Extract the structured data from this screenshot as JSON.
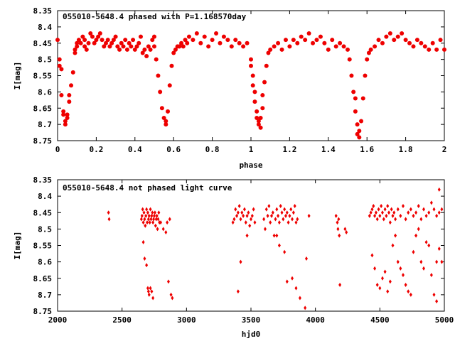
{
  "chart_data": [
    {
      "type": "scatter",
      "title": "055010-5648.4 phased with P=1.168570day",
      "xlabel": "phase",
      "ylabel": "I[mag]",
      "xlim": [
        0,
        2
      ],
      "ylim": [
        8.75,
        8.35
      ],
      "y_inverted": true,
      "x_ticks": [
        "0",
        "0.2",
        "0.4",
        "0.6",
        "0.8",
        "1",
        "1.2",
        "1.4",
        "1.6",
        "1.8",
        "2"
      ],
      "y_ticks": [
        "8.35",
        "8.4",
        "8.45",
        "8.5",
        "8.55",
        "8.6",
        "8.65",
        "8.7",
        "8.75"
      ],
      "marker": "filled-circle",
      "color": "#ee0000",
      "grid": false,
      "series": [
        {
          "x": [
            0.0,
            0.01,
            0.01,
            0.02,
            0.02,
            0.03,
            0.03,
            0.04,
            0.04,
            0.05,
            0.05,
            0.06,
            0.06,
            0.07,
            0.08,
            0.09,
            0.09,
            0.1,
            0.1,
            0.11,
            0.12,
            0.13,
            0.14,
            0.14,
            0.15,
            0.16,
            0.17,
            0.18,
            0.19,
            0.2,
            0.21,
            0.22,
            0.23,
            0.24,
            0.25,
            0.26,
            0.27,
            0.28,
            0.29,
            0.3,
            0.31,
            0.32,
            0.33,
            0.34,
            0.35,
            0.36,
            0.37,
            0.38,
            0.39,
            0.4,
            0.41,
            0.42,
            0.43,
            0.44,
            0.45,
            0.46,
            0.47,
            0.48,
            0.49,
            0.5,
            0.5,
            0.51,
            0.52,
            0.53,
            0.54,
            0.55,
            0.56,
            0.56,
            0.57,
            0.58,
            0.59,
            0.6,
            0.61,
            0.62,
            0.63,
            0.64,
            0.65,
            0.66,
            0.67,
            0.68,
            0.7,
            0.72,
            0.74,
            0.76,
            0.78,
            0.8,
            0.82,
            0.84,
            0.86,
            0.88,
            0.9,
            0.92,
            0.94,
            0.96,
            0.98,
            1.0,
            1.0,
            1.01,
            1.01,
            1.02,
            1.02,
            1.03,
            1.03,
            1.04,
            1.04,
            1.05,
            1.05,
            1.06,
            1.06,
            1.07,
            1.08,
            1.09,
            1.1,
            1.12,
            1.14,
            1.16,
            1.18,
            1.2,
            1.22,
            1.24,
            1.26,
            1.28,
            1.3,
            1.32,
            1.34,
            1.36,
            1.38,
            1.4,
            1.42,
            1.44,
            1.46,
            1.48,
            1.5,
            1.51,
            1.52,
            1.53,
            1.54,
            1.54,
            1.55,
            1.55,
            1.56,
            1.56,
            1.57,
            1.58,
            1.59,
            1.6,
            1.61,
            1.62,
            1.64,
            1.66,
            1.68,
            1.7,
            1.72,
            1.74,
            1.76,
            1.78,
            1.8,
            1.82,
            1.84,
            1.86,
            1.88,
            1.9,
            1.92,
            1.94,
            1.96,
            1.98,
            2.0
          ],
          "y": [
            8.44,
            8.5,
            8.52,
            8.53,
            8.61,
            8.66,
            8.67,
            8.69,
            8.7,
            8.68,
            8.67,
            8.63,
            8.61,
            8.58,
            8.54,
            8.48,
            8.47,
            8.45,
            8.46,
            8.44,
            8.45,
            8.43,
            8.44,
            8.46,
            8.47,
            8.45,
            8.42,
            8.43,
            8.45,
            8.44,
            8.43,
            8.42,
            8.44,
            8.46,
            8.45,
            8.44,
            8.46,
            8.45,
            8.44,
            8.43,
            8.46,
            8.47,
            8.45,
            8.46,
            8.44,
            8.47,
            8.45,
            8.46,
            8.44,
            8.47,
            8.46,
            8.45,
            8.43,
            8.48,
            8.47,
            8.49,
            8.46,
            8.47,
            8.44,
            8.43,
            8.46,
            8.5,
            8.55,
            8.6,
            8.65,
            8.68,
            8.7,
            8.69,
            8.66,
            8.58,
            8.52,
            8.48,
            8.47,
            8.46,
            8.46,
            8.45,
            8.46,
            8.44,
            8.45,
            8.43,
            8.44,
            8.42,
            8.45,
            8.43,
            8.46,
            8.44,
            8.42,
            8.45,
            8.43,
            8.44,
            8.46,
            8.44,
            8.45,
            8.46,
            8.45,
            8.5,
            8.52,
            8.55,
            8.58,
            8.6,
            8.63,
            8.66,
            8.68,
            8.69,
            8.7,
            8.71,
            8.68,
            8.65,
            8.61,
            8.57,
            8.52,
            8.48,
            8.47,
            8.46,
            8.45,
            8.47,
            8.44,
            8.46,
            8.44,
            8.45,
            8.43,
            8.44,
            8.42,
            8.45,
            8.44,
            8.43,
            8.45,
            8.47,
            8.44,
            8.46,
            8.45,
            8.46,
            8.47,
            8.5,
            8.55,
            8.6,
            8.62,
            8.66,
            8.7,
            8.73,
            8.74,
            8.72,
            8.69,
            8.62,
            8.55,
            8.5,
            8.48,
            8.47,
            8.46,
            8.44,
            8.45,
            8.43,
            8.42,
            8.44,
            8.43,
            8.42,
            8.44,
            8.45,
            8.46,
            8.44,
            8.45,
            8.46,
            8.47,
            8.45,
            8.47,
            8.44,
            8.47
          ]
        }
      ]
    },
    {
      "type": "scatter",
      "title": "055010-5648.4 not phased light curve",
      "xlabel": "hjd0",
      "ylabel": "I[mag]",
      "xlim": [
        2000,
        5000
      ],
      "ylim": [
        8.75,
        8.35
      ],
      "y_inverted": true,
      "x_ticks": [
        "2000",
        "2500",
        "3000",
        "3500",
        "4000",
        "4500",
        "5000"
      ],
      "y_ticks": [
        "8.35",
        "8.4",
        "8.45",
        "8.5",
        "8.55",
        "8.6",
        "8.65",
        "8.7",
        "8.75"
      ],
      "marker": "diamond",
      "color": "#ee0000",
      "grid": false,
      "series": [
        {
          "x": [
            2395,
            2400,
            2650,
            2655,
            2660,
            2665,
            2670,
            2675,
            2680,
            2685,
            2690,
            2695,
            2700,
            2705,
            2710,
            2715,
            2720,
            2725,
            2730,
            2735,
            2740,
            2745,
            2750,
            2755,
            2760,
            2765,
            2770,
            2775,
            2780,
            2785,
            2790,
            2665,
            2675,
            2690,
            2700,
            2705,
            2710,
            2720,
            2730,
            2740,
            2800,
            2820,
            2840,
            2850,
            2860,
            2870,
            2880,
            2890,
            3360,
            3370,
            3380,
            3390,
            3400,
            3410,
            3420,
            3430,
            3440,
            3450,
            3460,
            3470,
            3480,
            3490,
            3500,
            3510,
            3520,
            3530,
            3400,
            3420,
            3470,
            3600,
            3610,
            3620,
            3630,
            3640,
            3650,
            3660,
            3670,
            3680,
            3690,
            3700,
            3710,
            3720,
            3730,
            3740,
            3750,
            3760,
            3770,
            3780,
            3790,
            3800,
            3810,
            3820,
            3830,
            3840,
            3850,
            3860,
            3700,
            3720,
            3760,
            3780,
            3820,
            3850,
            3880,
            3920,
            3930,
            3950,
            4160,
            4170,
            4175,
            4180,
            4185,
            4190,
            4230,
            4240,
            4420,
            4430,
            4440,
            4450,
            4460,
            4470,
            4480,
            4490,
            4500,
            4510,
            4520,
            4530,
            4540,
            4550,
            4560,
            4570,
            4580,
            4590,
            4600,
            4610,
            4620,
            4640,
            4660,
            4680,
            4700,
            4720,
            4740,
            4760,
            4780,
            4800,
            4820,
            4840,
            4860,
            4880,
            4900,
            4920,
            4940,
            4960,
            4980,
            4440,
            4460,
            4480,
            4500,
            4520,
            4540,
            4560,
            4580,
            4600,
            4620,
            4640,
            4660,
            4680,
            4700,
            4720,
            4740,
            4760,
            4780,
            4800,
            4820,
            4840,
            4860,
            4880,
            4900,
            4920,
            4940,
            4960,
            4980,
            4960,
            4940
          ],
          "y": [
            8.45,
            8.47,
            8.47,
            8.46,
            8.44,
            8.48,
            8.45,
            8.47,
            8.49,
            8.46,
            8.44,
            8.48,
            8.45,
            8.47,
            8.46,
            8.48,
            8.44,
            8.47,
            8.46,
            8.45,
            8.48,
            8.47,
            8.46,
            8.45,
            8.49,
            8.47,
            8.46,
            8.5,
            8.47,
            8.45,
            8.48,
            8.54,
            8.59,
            8.61,
            8.68,
            8.69,
            8.7,
            8.68,
            8.69,
            8.71,
            8.48,
            8.5,
            8.51,
            8.48,
            8.66,
            8.47,
            8.7,
            8.71,
            8.48,
            8.47,
            8.44,
            8.46,
            8.45,
            8.43,
            8.47,
            8.45,
            8.46,
            8.44,
            8.48,
            8.46,
            8.45,
            8.49,
            8.47,
            8.46,
            8.44,
            8.48,
            8.69,
            8.6,
            8.52,
            8.47,
            8.5,
            8.44,
            8.46,
            8.43,
            8.48,
            8.46,
            8.45,
            8.52,
            8.47,
            8.44,
            8.46,
            8.48,
            8.43,
            8.45,
            8.47,
            8.44,
            8.46,
            8.45,
            8.48,
            8.46,
            8.44,
            8.47,
            8.45,
            8.43,
            8.48,
            8.47,
            8.52,
            8.55,
            8.57,
            8.66,
            8.65,
            8.68,
            8.71,
            8.74,
            8.59,
            8.46,
            8.46,
            8.48,
            8.5,
            8.47,
            8.52,
            8.67,
            8.5,
            8.51,
            8.46,
            8.45,
            8.44,
            8.43,
            8.46,
            8.45,
            8.47,
            8.44,
            8.46,
            8.43,
            8.45,
            8.47,
            8.44,
            8.46,
            8.43,
            8.45,
            8.48,
            8.44,
            8.46,
            8.45,
            8.47,
            8.44,
            8.46,
            8.43,
            8.47,
            8.45,
            8.44,
            8.46,
            8.45,
            8.43,
            8.47,
            8.44,
            8.46,
            8.45,
            8.42,
            8.44,
            8.46,
            8.45,
            8.44,
            8.58,
            8.62,
            8.67,
            8.68,
            8.65,
            8.63,
            8.69,
            8.66,
            8.55,
            8.52,
            8.6,
            8.62,
            8.64,
            8.67,
            8.69,
            8.7,
            8.57,
            8.52,
            8.5,
            8.6,
            8.62,
            8.54,
            8.55,
            8.64,
            8.7,
            8.6,
            8.56,
            8.6,
            8.38,
            8.72
          ]
        }
      ]
    }
  ]
}
